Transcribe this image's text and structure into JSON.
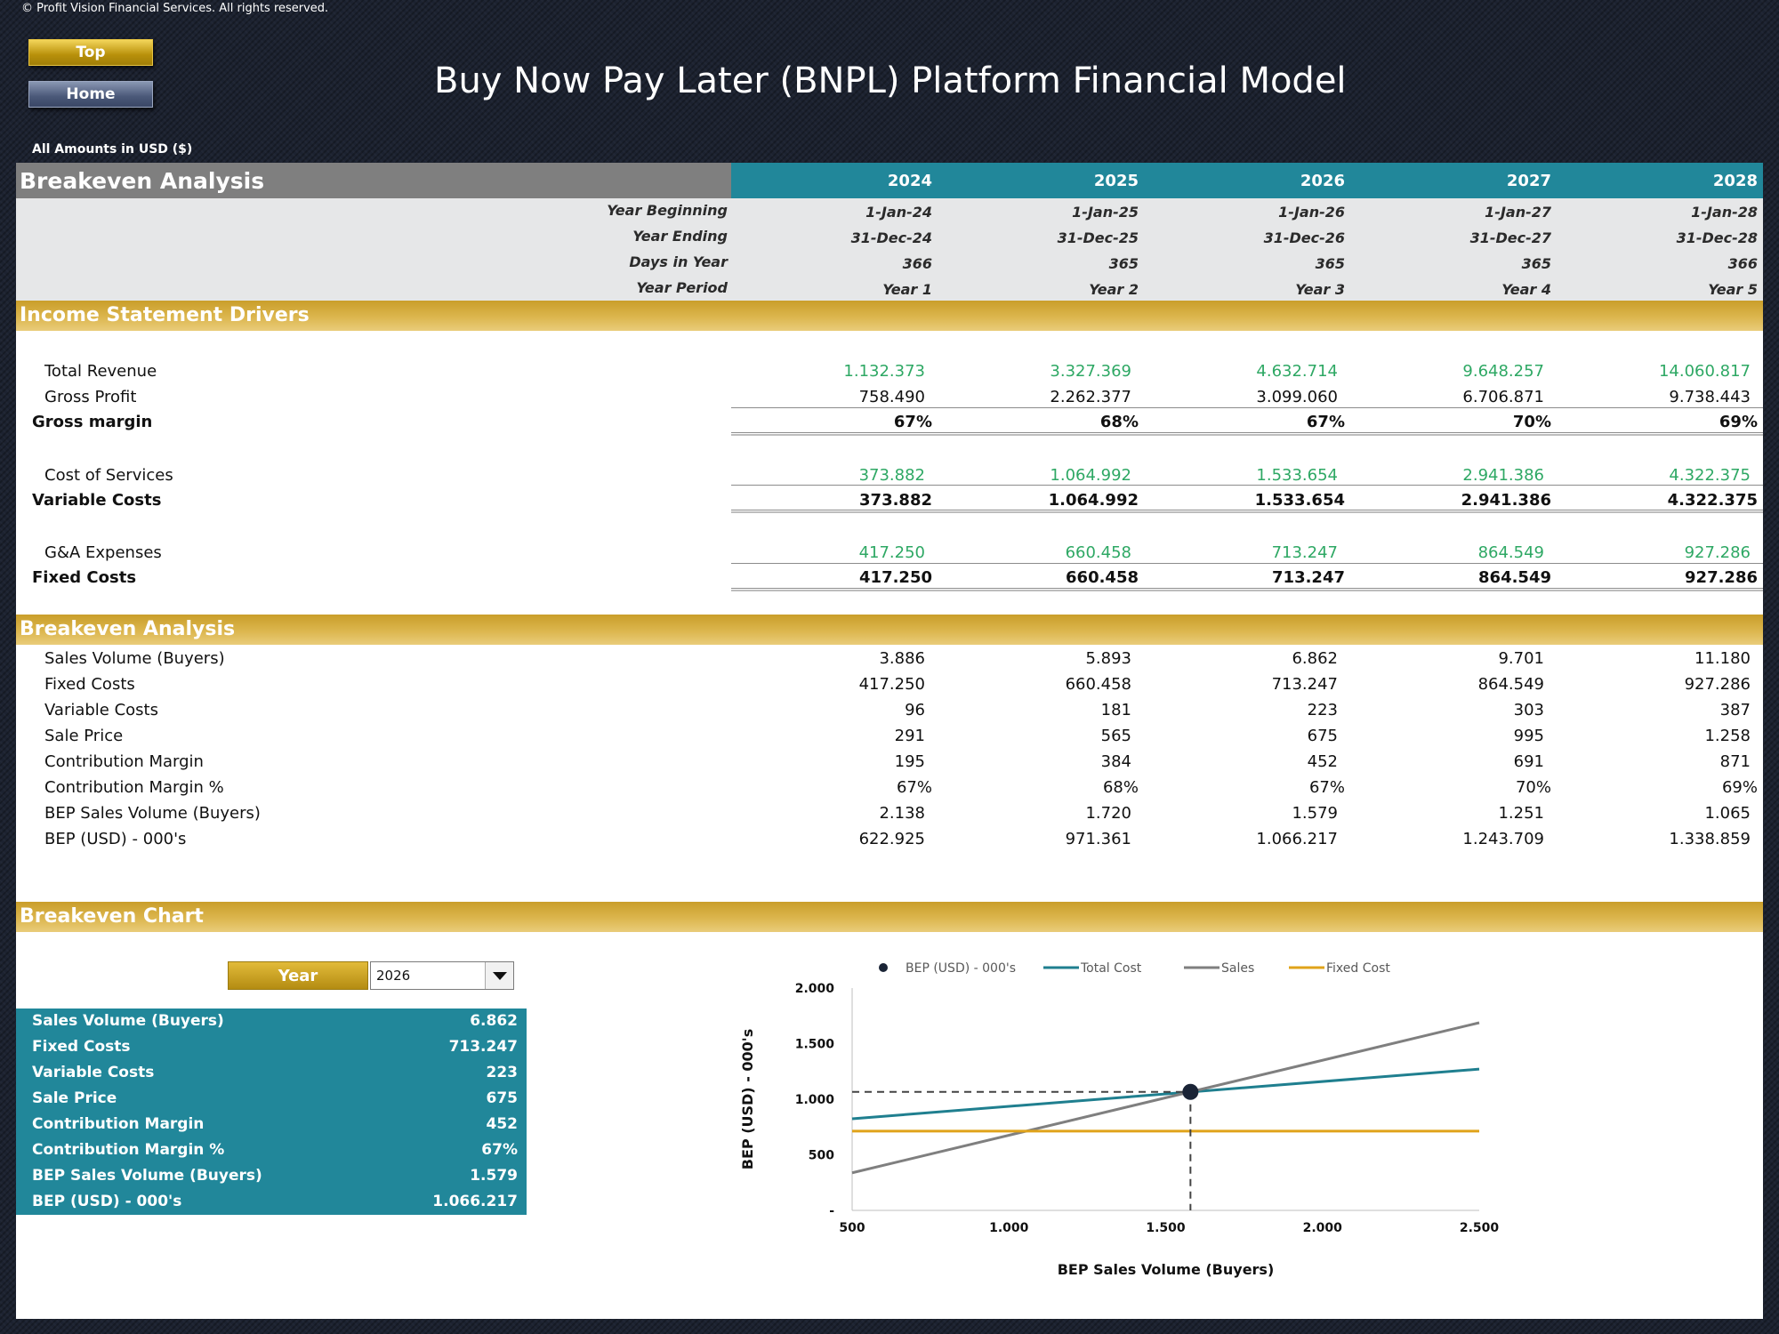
{
  "copyright": "© Profit Vision Financial Services. All rights reserved.",
  "buttons": {
    "top": "Top",
    "home": "Home"
  },
  "title": "Buy Now Pay Later (BNPL) Platform Financial Model",
  "amounts_note": "All Amounts in  USD ($)",
  "header": {
    "section_title": "Breakeven Analysis",
    "years": [
      "2024",
      "2025",
      "2026",
      "2027",
      "2028"
    ]
  },
  "meta_rows": [
    {
      "label": "Year Beginning",
      "values": [
        "1-Jan-24",
        "1-Jan-25",
        "1-Jan-26",
        "1-Jan-27",
        "1-Jan-28"
      ]
    },
    {
      "label": "Year Ending",
      "values": [
        "31-Dec-24",
        "31-Dec-25",
        "31-Dec-26",
        "31-Dec-27",
        "31-Dec-28"
      ]
    },
    {
      "label": "Days in Year",
      "values": [
        "366",
        "365",
        "365",
        "365",
        "366"
      ]
    },
    {
      "label": "Year Period",
      "values": [
        "Year 1",
        "Year 2",
        "Year 3",
        "Year 4",
        "Year 5"
      ]
    }
  ],
  "income_section": {
    "title": "Income Statement Drivers",
    "rows": [
      {
        "label": "Total Revenue",
        "values": [
          "1.132.373",
          "3.327.369",
          "4.632.714",
          "9.648.257",
          "14.060.817"
        ],
        "style": "green"
      },
      {
        "label": "Gross Profit",
        "values": [
          "758.490",
          "2.262.377",
          "3.099.060",
          "6.706.871",
          "9.738.443"
        ],
        "style": "plain"
      },
      {
        "label": "Gross margin",
        "values": [
          "67%",
          "68%",
          "67%",
          "70%",
          "69%"
        ],
        "style": "bold"
      },
      {
        "label": "Cost of Services",
        "values": [
          "373.882",
          "1.064.992",
          "1.533.654",
          "2.941.386",
          "4.322.375"
        ],
        "style": "green"
      },
      {
        "label": "Variable Costs",
        "values": [
          "373.882",
          "1.064.992",
          "1.533.654",
          "2.941.386",
          "4.322.375"
        ],
        "style": "bold"
      },
      {
        "label": "G&A Expenses",
        "values": [
          "417.250",
          "660.458",
          "713.247",
          "864.549",
          "927.286"
        ],
        "style": "green"
      },
      {
        "label": "Fixed Costs",
        "values": [
          "417.250",
          "660.458",
          "713.247",
          "864.549",
          "927.286"
        ],
        "style": "bold"
      }
    ]
  },
  "breakeven_section": {
    "title": "Breakeven Analysis",
    "rows": [
      {
        "label": "Sales Volume (Buyers)",
        "values": [
          "3.886",
          "5.893",
          "6.862",
          "9.701",
          "11.180"
        ]
      },
      {
        "label": "Fixed Costs",
        "values": [
          "417.250",
          "660.458",
          "713.247",
          "864.549",
          "927.286"
        ]
      },
      {
        "label": "Variable Costs",
        "values": [
          "96",
          "181",
          "223",
          "303",
          "387"
        ]
      },
      {
        "label": "Sale Price",
        "values": [
          "291",
          "565",
          "675",
          "995",
          "1.258"
        ]
      },
      {
        "label": "Contribution Margin",
        "values": [
          "195",
          "384",
          "452",
          "691",
          "871"
        ]
      },
      {
        "label": "Contribution Margin %",
        "values": [
          "67%",
          "68%",
          "67%",
          "70%",
          "69%"
        ]
      },
      {
        "label": "BEP Sales Volume (Buyers)",
        "values": [
          "2.138",
          "1.720",
          "1.579",
          "1.251",
          "1.065"
        ]
      },
      {
        "label": "BEP (USD) - 000's",
        "values": [
          "622.925",
          "971.361",
          "1.066.217",
          "1.243.709",
          "1.338.859"
        ]
      }
    ]
  },
  "chart_section": {
    "title": "Breakeven Chart",
    "year_label": "Year",
    "year_selected": "2026",
    "summary": [
      {
        "label": "Sales Volume (Buyers)",
        "value": "6.862"
      },
      {
        "label": "Fixed Costs",
        "value": "713.247"
      },
      {
        "label": "Variable Costs",
        "value": "223"
      },
      {
        "label": "Sale Price",
        "value": "675"
      },
      {
        "label": "Contribution Margin",
        "value": "452"
      },
      {
        "label": "Contribution Margin %",
        "value": "67%"
      },
      {
        "label": "BEP Sales Volume (Buyers)",
        "value": "1.579"
      },
      {
        "label": "BEP (USD) - 000's",
        "value": "1.066.217"
      }
    ]
  },
  "chart_data": {
    "type": "line",
    "xlabel": "BEP Sales Volume (Buyers)",
    "ylabel": "BEP (USD) - 000's",
    "xlim": [
      500,
      2500
    ],
    "ylim": [
      0,
      2000
    ],
    "x_ticks": [
      "500",
      "1.000",
      "1.500",
      "2.000",
      "2.500"
    ],
    "y_ticks": [
      "-",
      "500",
      "1.000",
      "1.500",
      "2.000"
    ],
    "x_tick_values": [
      500,
      1000,
      1500,
      2000,
      2500
    ],
    "y_tick_values": [
      0,
      500,
      1000,
      1500,
      2000
    ],
    "legend_position": "top",
    "series": [
      {
        "name": "Total Cost",
        "color": "#1f7f8f",
        "x": [
          500,
          2500
        ],
        "y": [
          824,
          1271
        ]
      },
      {
        "name": "Sales",
        "color": "#7f7f7f",
        "x": [
          500,
          2500
        ],
        "y": [
          338,
          1688
        ]
      },
      {
        "name": "Fixed Cost",
        "color": "#e0a31a",
        "x": [
          500,
          2500
        ],
        "y": [
          713,
          713
        ]
      }
    ],
    "bep_point": {
      "name": "BEP (USD) - 000's",
      "color": "#1a2436",
      "x": 1579,
      "y": 1066
    }
  }
}
